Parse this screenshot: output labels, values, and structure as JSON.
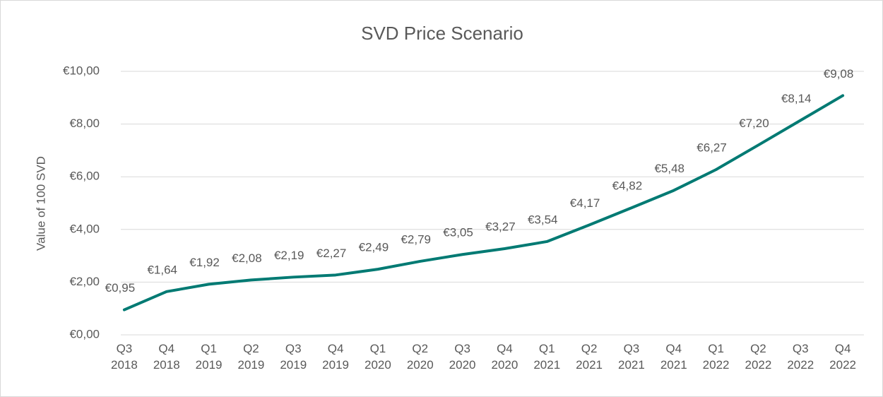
{
  "chart_data": {
    "type": "line",
    "title": "SVD Price Scenario",
    "y_label": "Value of 100 SVD",
    "categories": [
      "Q3 2018",
      "Q4 2018",
      "Q1 2019",
      "Q2 2019",
      "Q3 2019",
      "Q4 2019",
      "Q1 2020",
      "Q2 2020",
      "Q3 2020",
      "Q4 2020",
      "Q1 2021",
      "Q2 2021",
      "Q3 2021",
      "Q4 2021",
      "Q1 2022",
      "Q2 2022",
      "Q3 2022",
      "Q4 2022"
    ],
    "series": [
      {
        "color": "#007a73",
        "values": [
          0.95,
          1.64,
          1.92,
          2.08,
          2.19,
          2.27,
          2.49,
          2.79,
          3.05,
          3.27,
          3.54,
          4.17,
          4.82,
          5.48,
          6.27,
          7.2,
          8.14,
          9.08
        ],
        "value_labels": [
          "€0,95",
          "€1,64",
          "€1,92",
          "€2,08",
          "€2,19",
          "€2,27",
          "€2,49",
          "€2,79",
          "€3,05",
          "€3,27",
          "€3,54",
          "€4,17",
          "€4,82",
          "€5,48",
          "€6,27",
          "€7,20",
          "€8,14",
          "€9,08"
        ]
      }
    ],
    "ylim": [
      0,
      10
    ],
    "yticks": [
      {
        "value": 0,
        "label": "€0,00"
      },
      {
        "value": 2,
        "label": "€2,00"
      },
      {
        "value": 4,
        "label": "€4,00"
      },
      {
        "value": 6,
        "label": "€6,00"
      },
      {
        "value": 8,
        "label": "€8,00"
      },
      {
        "value": 10,
        "label": "€10,00"
      }
    ],
    "grid": true
  }
}
